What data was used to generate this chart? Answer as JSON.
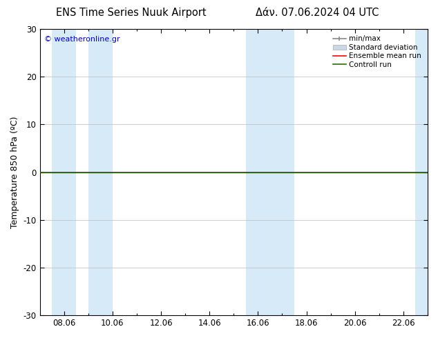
{
  "title_left": "ENS Time Series Nuuk Airport",
  "title_right": "Δάν. 07.06.2024 04 UTC",
  "ylabel": "Temperature 850 hPa (ºC)",
  "ylim": [
    -30,
    30
  ],
  "yticks": [
    -30,
    -20,
    -10,
    0,
    10,
    20,
    30
  ],
  "xtick_labels": [
    "08.06",
    "10.06",
    "12.06",
    "14.06",
    "16.06",
    "18.06",
    "20.06",
    "22.06"
  ],
  "xlim": [
    0,
    16
  ],
  "control_run_y": 0.0,
  "bg_color": "#ffffff",
  "band_color": "#d6eaf8",
  "grid_color": "#bbbbbb",
  "zero_line_color": "#000000",
  "control_run_color": "#2d6a04",
  "ensemble_mean_color": "#ff0000",
  "minmax_color": "#888888",
  "std_color": "#c8d8e8",
  "watermark": "© weatheronline.gr",
  "watermark_color": "#0000cc",
  "legend_labels": [
    "min/max",
    "Standard deviation",
    "Ensemble mean run",
    "Controll run"
  ],
  "shade_regions": [
    [
      0.5,
      1.5
    ],
    [
      2.0,
      3.0
    ],
    [
      8.5,
      9.5
    ],
    [
      9.5,
      10.5
    ],
    [
      15.5,
      16.0
    ]
  ],
  "title_fontsize": 10.5,
  "axis_fontsize": 9,
  "tick_fontsize": 8.5,
  "legend_fontsize": 7.5,
  "figsize": [
    6.34,
    4.9
  ],
  "dpi": 100
}
